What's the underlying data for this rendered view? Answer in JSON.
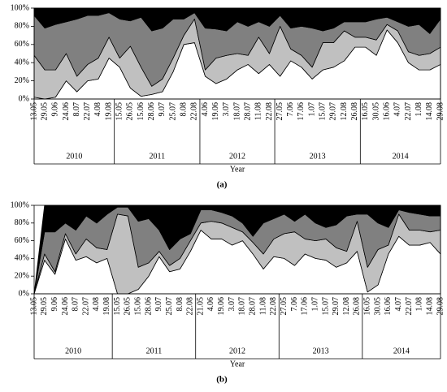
{
  "chart_data": [
    {
      "type": "area",
      "stacked": true,
      "caption": "(a)",
      "xlabel": "Year",
      "groups": [
        {
          "label": "2010",
          "categories": [
            "13.05",
            "29.05",
            "9.06",
            "24.06",
            "8.07",
            "22.07",
            "4.08",
            "19.08"
          ]
        },
        {
          "label": "2011",
          "categories": [
            "15.05",
            "26.05",
            "15.06",
            "28.06",
            "9.07",
            "25.07",
            "8.08",
            "22.08"
          ]
        },
        {
          "label": "2012",
          "categories": [
            "4.06",
            "19.06",
            "3.07",
            "18.07",
            "28.07",
            "11.08",
            "22.08"
          ]
        },
        {
          "label": "2013",
          "categories": [
            "27.05",
            "7.06",
            "17.06",
            "1.07",
            "15.07",
            "29.07",
            "12.08",
            "26.08"
          ]
        },
        {
          "label": "2014",
          "categories": [
            "16.05",
            "30.05",
            "16.06",
            "4.07",
            "22.07",
            "1.08",
            "14.08",
            "29.08"
          ]
        }
      ],
      "ylim": [
        0,
        100
      ],
      "yticks": [
        {
          "value": 0,
          "label": "0%"
        },
        {
          "value": 20,
          "label": "20%"
        },
        {
          "value": 40,
          "label": "40%"
        },
        {
          "value": 60,
          "label": "60%"
        },
        {
          "value": 80,
          "label": "80%"
        },
        {
          "value": 100,
          "label": "100%"
        }
      ],
      "series": [
        {
          "color": "#ffffff",
          "values": [
            2,
            0,
            2,
            20,
            8,
            20,
            22,
            45,
            35,
            12,
            3,
            5,
            8,
            30,
            60,
            62,
            25,
            17,
            22,
            32,
            38,
            28,
            38,
            25,
            42,
            35,
            22,
            32,
            35,
            42,
            57,
            57,
            48,
            76,
            62,
            40,
            32,
            32,
            38
          ]
        },
        {
          "color": "#c0c0c0",
          "values": [
            46,
            32,
            30,
            30,
            17,
            18,
            23,
            23,
            10,
            46,
            32,
            9,
            14,
            15,
            10,
            26,
            7,
            28,
            26,
            18,
            10,
            40,
            12,
            55,
            13,
            13,
            13,
            30,
            27,
            33,
            11,
            11,
            17,
            6,
            13,
            12,
            16,
            18,
            19
          ]
        },
        {
          "color": "#808080",
          "values": [
            44,
            46,
            50,
            35,
            63,
            54,
            47,
            27,
            43,
            28,
            55,
            61,
            56,
            43,
            18,
            7,
            46,
            32,
            27,
            35,
            32,
            17,
            30,
            12,
            23,
            32,
            43,
            13,
            16,
            10,
            17,
            17,
            23,
            8,
            10,
            28,
            34,
            22,
            31
          ]
        },
        {
          "color": "#000000",
          "values": [
            8,
            22,
            18,
            15,
            12,
            8,
            8,
            5,
            12,
            14,
            10,
            25,
            22,
            12,
            12,
            5,
            22,
            23,
            25,
            15,
            20,
            15,
            20,
            8,
            22,
            20,
            22,
            25,
            22,
            15,
            15,
            15,
            12,
            10,
            15,
            20,
            18,
            28,
            12
          ]
        }
      ]
    },
    {
      "type": "area",
      "stacked": true,
      "caption": "(b)",
      "xlabel": "Year",
      "groups": [
        {
          "label": "2010",
          "categories": [
            "13.05",
            "29.05",
            "9.06",
            "24.06",
            "8.07",
            "22.07",
            "4.08",
            "19.08"
          ]
        },
        {
          "label": "2011",
          "categories": [
            "15.05",
            "26.05",
            "15.06",
            "28.06",
            "9.07",
            "25.07",
            "8.08",
            "22.08"
          ]
        },
        {
          "label": "2012",
          "categories": [
            "21.05",
            "4.06",
            "19.06",
            "3.07",
            "18.07",
            "28.07",
            "11.08",
            "22.08"
          ]
        },
        {
          "label": "2013",
          "categories": [
            "27.05",
            "7.06",
            "17.06",
            "1.07",
            "15.07",
            "29.07",
            "12.08",
            "26.08"
          ]
        },
        {
          "label": "2014",
          "categories": [
            "16.05",
            "30.05",
            "16.06",
            "4.07",
            "22.07",
            "1.08",
            "14.08",
            "29.08"
          ]
        }
      ],
      "ylim": [
        0,
        100
      ],
      "yticks": [
        {
          "value": 0,
          "label": "0%"
        },
        {
          "value": 20,
          "label": "20%"
        },
        {
          "value": 40,
          "label": "40%"
        },
        {
          "value": 60,
          "label": "60%"
        },
        {
          "value": 80,
          "label": "80%"
        },
        {
          "value": 100,
          "label": "100%"
        }
      ],
      "series": [
        {
          "color": "#ffffff",
          "values": [
            0,
            38,
            22,
            62,
            38,
            42,
            35,
            40,
            0,
            0,
            5,
            20,
            42,
            25,
            28,
            48,
            72,
            62,
            62,
            55,
            60,
            45,
            28,
            42,
            40,
            32,
            45,
            40,
            38,
            30,
            35,
            48,
            2,
            10,
            45,
            65,
            55,
            55,
            58,
            45
          ]
        },
        {
          "color": "#c0c0c0",
          "values": [
            0,
            7,
            3,
            6,
            7,
            20,
            17,
            10,
            90,
            88,
            25,
            15,
            6,
            7,
            12,
            12,
            8,
            20,
            18,
            20,
            10,
            13,
            17,
            20,
            28,
            38,
            17,
            20,
            24,
            22,
            13,
            34,
            28,
            40,
            10,
            25,
            17,
            17,
            12,
            27
          ]
        },
        {
          "color": "#808080",
          "values": [
            0,
            25,
            45,
            12,
            27,
            26,
            28,
            40,
            8,
            10,
            52,
            50,
            24,
            18,
            22,
            8,
            15,
            13,
            12,
            13,
            10,
            7,
            35,
            23,
            22,
            12,
            28,
            20,
            13,
            26,
            40,
            8,
            60,
            30,
            20,
            5,
            20,
            18,
            18,
            16
          ]
        },
        {
          "color": "#000000",
          "values": [
            0,
            30,
            30,
            20,
            28,
            12,
            20,
            10,
            2,
            2,
            18,
            15,
            28,
            50,
            38,
            32,
            5,
            5,
            8,
            12,
            20,
            35,
            20,
            15,
            10,
            18,
            10,
            20,
            25,
            22,
            12,
            10,
            10,
            20,
            25,
            5,
            8,
            10,
            12,
            12
          ]
        }
      ]
    }
  ]
}
